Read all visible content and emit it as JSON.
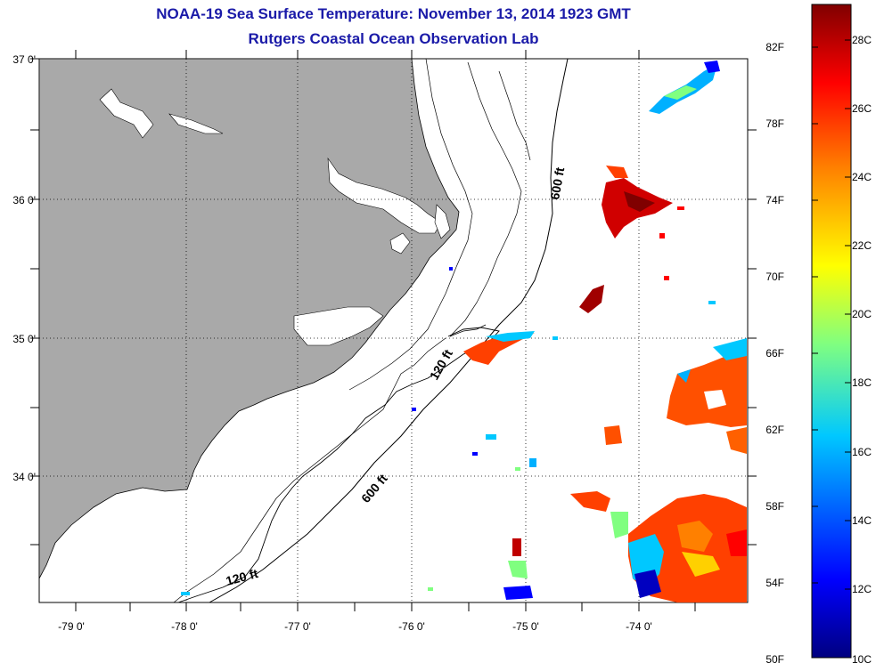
{
  "title": "NOAA-19 Sea Surface Temperature:  November 13, 2014 1923 GMT",
  "subtitle": "Rutgers Coastal Ocean Observation Lab",
  "lat_labels": [
    "37 0'",
    "36 0'",
    "35 0'",
    "34 0'"
  ],
  "lon_labels": [
    "-79 0'",
    "-78 0'",
    "-77 0'",
    "-76 0'",
    "-75 0'",
    "-74 0'"
  ],
  "contour_labels": [
    "600 ft",
    "120 ft",
    "600 ft",
    "120 ft"
  ],
  "colorbar": {
    "fahrenheit_labels": [
      "82F",
      "78F",
      "74F",
      "70F",
      "66F",
      "62F",
      "58F",
      "54F",
      "50F"
    ],
    "celsius_labels": [
      "28C",
      "26C",
      "24C",
      "22C",
      "20C",
      "18C",
      "16C",
      "14C",
      "12C",
      "10C"
    ],
    "colors": [
      "#000080",
      "#0000ff",
      "#00c8ff",
      "#80ff80",
      "#ffff00",
      "#ff8000",
      "#ff0000",
      "#800000"
    ]
  },
  "colors": {
    "land": "#a9a9a9",
    "title": "#1a1aa8"
  }
}
